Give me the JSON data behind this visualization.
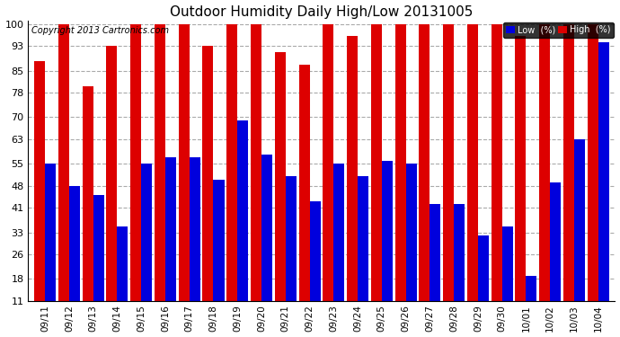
{
  "title": "Outdoor Humidity Daily High/Low 20131005",
  "copyright": "Copyright 2013 Cartronics.com",
  "legend_low": "Low  (%)",
  "legend_high": "High  (%)",
  "low_color": "#0000dd",
  "high_color": "#dd0000",
  "background_color": "#ffffff",
  "yticks": [
    11,
    18,
    26,
    33,
    41,
    48,
    55,
    63,
    70,
    78,
    85,
    93,
    100
  ],
  "ylim": [
    11,
    100
  ],
  "categories": [
    "09/11",
    "09/12",
    "09/13",
    "09/14",
    "09/15",
    "09/16",
    "09/17",
    "09/18",
    "09/19",
    "09/20",
    "09/21",
    "09/22",
    "09/23",
    "09/24",
    "09/25",
    "09/26",
    "09/27",
    "09/28",
    "09/29",
    "09/30",
    "10/01",
    "10/02",
    "10/03",
    "10/04"
  ],
  "high_values": [
    88,
    100,
    80,
    93,
    100,
    100,
    100,
    93,
    100,
    100,
    91,
    87,
    100,
    96,
    100,
    100,
    100,
    100,
    100,
    100,
    96,
    100,
    100,
    100
  ],
  "low_values": [
    55,
    48,
    45,
    35,
    55,
    57,
    57,
    50,
    69,
    58,
    51,
    43,
    55,
    51,
    56,
    55,
    42,
    42,
    32,
    35,
    19,
    49,
    63,
    94
  ]
}
